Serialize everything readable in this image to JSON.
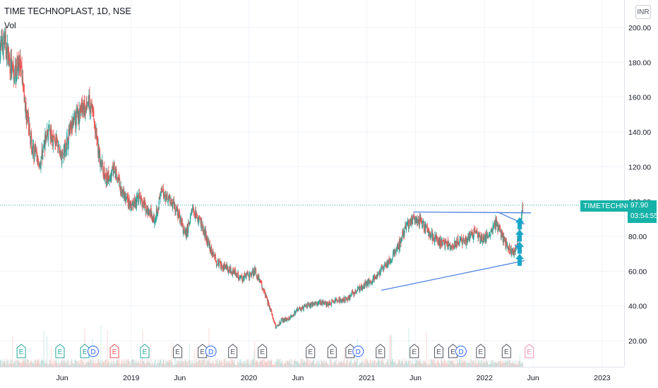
{
  "header": {
    "title": "TIME TECHNOPLAST, 1D, NSE",
    "volume_label": "Vol",
    "currency": "INR"
  },
  "price_tag": {
    "symbol": "TIMETECHNO",
    "price": "97.90",
    "countdown": "03:54:55"
  },
  "colors": {
    "up": "#26a69a",
    "down": "#ef5350",
    "trendline": "#4d82e0",
    "arrow": "#19a7c9",
    "last_price_line": "#26a69a",
    "tag": "#16b2a8"
  },
  "events": {
    "earnings_label": "E",
    "dividend_label": "D",
    "items": [
      {
        "type": "E",
        "date": "2018-01-25",
        "color": "green"
      },
      {
        "type": "E",
        "date": "2018-05-25",
        "color": "green"
      },
      {
        "type": "E",
        "date": "2018-08-10",
        "color": "green"
      },
      {
        "type": "D",
        "date": "2018-09-05",
        "color": "blue"
      },
      {
        "type": "E",
        "date": "2018-11-10",
        "color": "red"
      },
      {
        "type": "E",
        "date": "2019-02-12",
        "color": "green"
      },
      {
        "type": "E",
        "date": "2019-05-25",
        "color": "gray"
      },
      {
        "type": "E",
        "date": "2019-08-10",
        "color": "gray"
      },
      {
        "type": "D",
        "date": "2019-09-05",
        "color": "blue"
      },
      {
        "type": "E",
        "date": "2019-11-12",
        "color": "gray"
      },
      {
        "type": "E",
        "date": "2020-02-12",
        "color": "gray"
      },
      {
        "type": "E",
        "date": "2020-07-10",
        "color": "gray"
      },
      {
        "type": "E",
        "date": "2020-09-15",
        "color": "gray"
      },
      {
        "type": "E",
        "date": "2020-11-10",
        "color": "gray"
      },
      {
        "type": "D",
        "date": "2020-12-05",
        "color": "blue"
      },
      {
        "type": "E",
        "date": "2021-02-12",
        "color": "gray"
      },
      {
        "type": "E",
        "date": "2021-05-28",
        "color": "gray"
      },
      {
        "type": "E",
        "date": "2021-08-12",
        "color": "gray"
      },
      {
        "type": "E",
        "date": "2021-09-25",
        "color": "gray"
      },
      {
        "type": "D",
        "date": "2021-10-20",
        "color": "blue"
      },
      {
        "type": "E",
        "date": "2021-12-20",
        "color": "gray"
      },
      {
        "type": "E",
        "date": "2022-03-10",
        "color": "gray"
      },
      {
        "type": "E",
        "date": "2022-05-20",
        "color": "pink"
      }
    ]
  },
  "chart_data": {
    "type": "candlestick",
    "title": "TIME TECHNOPLAST, 1D, NSE",
    "x_tick_labels": [
      "Jun",
      "2019",
      "Jun",
      "2020",
      "Jun",
      "2021",
      "Jun",
      "2022",
      "Jun",
      "2023"
    ],
    "x_ticks": [
      "2018-06-01",
      "2019-01-01",
      "2019-06-01",
      "2020-01-01",
      "2020-06-01",
      "2021-01-01",
      "2021-06-01",
      "2022-01-01",
      "2022-06-01",
      "2023-01-01"
    ],
    "x_range": [
      "2017-11-20",
      "2023-03-10"
    ],
    "y_tick_labels": [
      "20.00",
      "40.00",
      "60.00",
      "80.00",
      "100.00",
      "120.00",
      "140.00",
      "160.00",
      "180.00",
      "200.00"
    ],
    "ylim": [
      15,
      205
    ],
    "last_price": 97.9,
    "series": [
      {
        "name": "close",
        "points": [
          [
            "2017-11-20",
            188
          ],
          [
            "2017-12-05",
            192
          ],
          [
            "2018-01-01",
            172
          ],
          [
            "2018-01-20",
            180
          ],
          [
            "2018-02-10",
            150
          ],
          [
            "2018-03-01",
            130
          ],
          [
            "2018-03-25",
            122
          ],
          [
            "2018-04-15",
            140
          ],
          [
            "2018-05-10",
            135
          ],
          [
            "2018-06-01",
            125
          ],
          [
            "2018-06-25",
            140
          ],
          [
            "2018-07-20",
            150
          ],
          [
            "2018-08-10",
            155
          ],
          [
            "2018-08-30",
            158
          ],
          [
            "2018-09-20",
            130
          ],
          [
            "2018-10-15",
            112
          ],
          [
            "2018-11-10",
            118
          ],
          [
            "2018-12-05",
            104
          ],
          [
            "2019-01-01",
            97
          ],
          [
            "2019-01-25",
            102
          ],
          [
            "2019-02-20",
            95
          ],
          [
            "2019-03-15",
            90
          ],
          [
            "2019-04-05",
            105
          ],
          [
            "2019-04-25",
            103
          ],
          [
            "2019-05-15",
            98
          ],
          [
            "2019-06-01",
            90
          ],
          [
            "2019-06-20",
            80
          ],
          [
            "2019-07-10",
            96
          ],
          [
            "2019-08-05",
            88
          ],
          [
            "2019-08-30",
            75
          ],
          [
            "2019-09-25",
            65
          ],
          [
            "2019-10-20",
            62
          ],
          [
            "2019-11-15",
            60
          ],
          [
            "2019-12-10",
            56
          ],
          [
            "2020-01-01",
            58
          ],
          [
            "2020-01-20",
            60
          ],
          [
            "2020-02-10",
            52
          ],
          [
            "2020-03-05",
            40
          ],
          [
            "2020-03-25",
            28
          ],
          [
            "2020-04-15",
            32
          ],
          [
            "2020-05-10",
            33
          ],
          [
            "2020-06-01",
            38
          ],
          [
            "2020-07-01",
            40
          ],
          [
            "2020-08-01",
            42
          ],
          [
            "2020-09-01",
            41
          ],
          [
            "2020-10-01",
            43
          ],
          [
            "2020-11-01",
            44
          ],
          [
            "2020-12-01",
            49
          ],
          [
            "2021-01-01",
            53
          ],
          [
            "2021-01-25",
            56
          ],
          [
            "2021-02-20",
            62
          ],
          [
            "2021-03-15",
            66
          ],
          [
            "2021-04-10",
            75
          ],
          [
            "2021-05-01",
            85
          ],
          [
            "2021-05-20",
            88
          ],
          [
            "2021-06-10",
            90
          ],
          [
            "2021-07-01",
            85
          ],
          [
            "2021-07-25",
            80
          ],
          [
            "2021-08-20",
            76
          ],
          [
            "2021-09-15",
            75
          ],
          [
            "2021-10-10",
            76
          ],
          [
            "2021-11-05",
            78
          ],
          [
            "2021-12-01",
            82
          ],
          [
            "2021-12-25",
            78
          ],
          [
            "2022-01-15",
            80
          ],
          [
            "2022-02-05",
            88
          ],
          [
            "2022-02-25",
            80
          ],
          [
            "2022-03-15",
            74
          ],
          [
            "2022-04-01",
            70
          ],
          [
            "2022-04-15",
            78
          ],
          [
            "2022-05-01",
            97.9
          ]
        ]
      }
    ],
    "annotations": [
      {
        "type": "trendline",
        "from": [
          "2021-02-15",
          49
        ],
        "to": [
          "2022-05-05",
          66
        ]
      },
      {
        "type": "trendline",
        "from": [
          "2021-05-25",
          94
        ],
        "to": [
          "2022-05-25",
          93.5
        ]
      },
      {
        "type": "trendline",
        "from": [
          "2022-02-10",
          94
        ],
        "to": [
          "2022-05-05",
          87
        ]
      },
      {
        "type": "trendline",
        "from": [
          "2022-04-05",
          75
        ],
        "to": [
          "2022-04-25",
          71
        ]
      },
      {
        "type": "arrow_up",
        "at": [
          "2022-04-20",
          63
        ],
        "to": [
          "2022-04-20",
          91
        ]
      }
    ]
  }
}
